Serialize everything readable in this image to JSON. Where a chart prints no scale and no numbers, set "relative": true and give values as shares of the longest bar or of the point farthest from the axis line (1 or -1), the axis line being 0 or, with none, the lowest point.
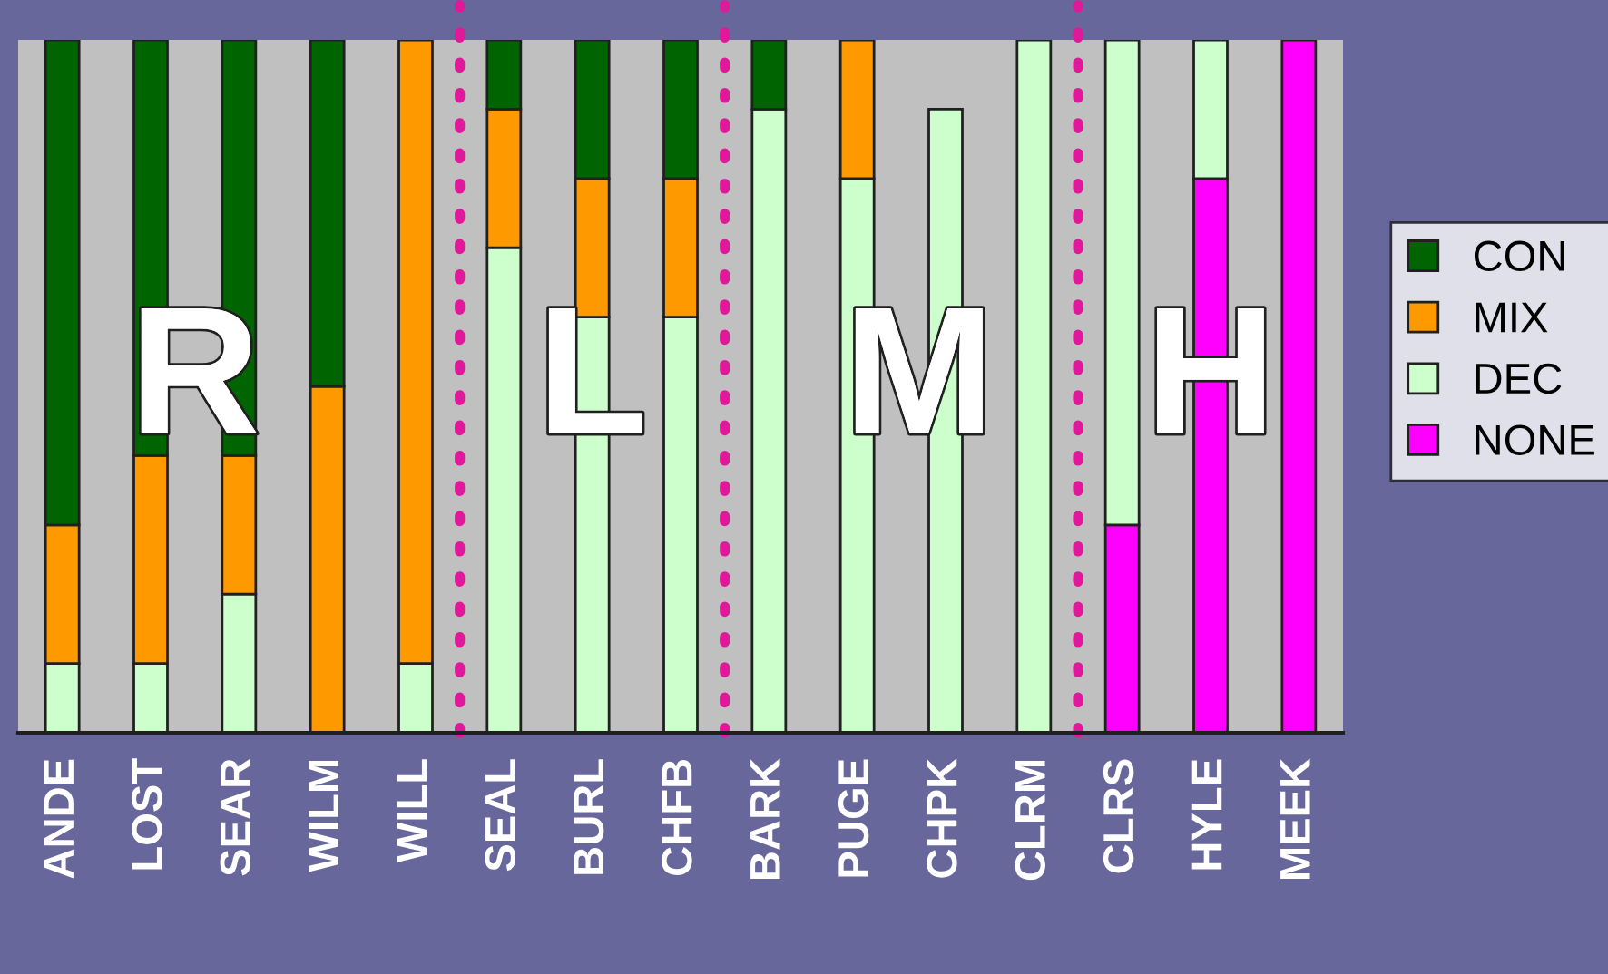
{
  "chart_data": {
    "type": "bar",
    "stacked": true,
    "relative": true,
    "legend": "right",
    "grid": false,
    "categories": [
      "ANDE",
      "LOST",
      "SEAR",
      "WILM",
      "WILL",
      "SEAL",
      "BURL",
      "CHFB",
      "BARK",
      "PUGE",
      "CHPK",
      "CLRM",
      "CLRS",
      "HYLE",
      "MEEK"
    ],
    "series": [
      {
        "name": "NONE",
        "color": "#ff00ff",
        "values": [
          0,
          0,
          0,
          0,
          0,
          0,
          0,
          0,
          0,
          0,
          0,
          0,
          0.3,
          0.8,
          1.0
        ]
      },
      {
        "name": "DEC",
        "color": "#ccffcc",
        "values": [
          0.1,
          0.1,
          0.2,
          0,
          0.1,
          0.7,
          0.6,
          0.6,
          0.9,
          0.8,
          0.9,
          1.0,
          0.7,
          0.2,
          0
        ]
      },
      {
        "name": "MIX",
        "color": "#ff9900",
        "values": [
          0.2,
          0.3,
          0.2,
          0.5,
          0.9,
          0.2,
          0.2,
          0.2,
          0,
          0.2,
          0,
          0,
          0,
          0,
          0
        ]
      },
      {
        "name": "CON",
        "color": "#006400",
        "values": [
          0.7,
          0.6,
          0.6,
          0.5,
          0,
          0.1,
          0.2,
          0.2,
          0.1,
          0,
          0,
          0,
          0,
          0,
          0
        ]
      }
    ],
    "annotations": [
      "R",
      "L",
      "M",
      "H"
    ]
  }
}
